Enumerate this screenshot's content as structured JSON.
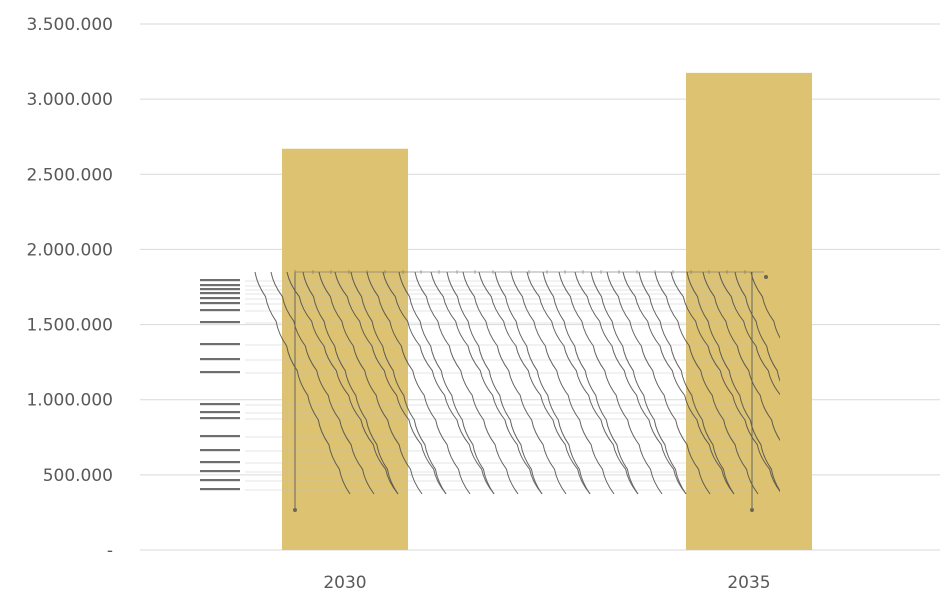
{
  "chart_data": {
    "type": "bar",
    "categories": [
      "2030",
      "2035"
    ],
    "values": [
      2670000,
      3175000
    ],
    "ylim": [
      0,
      3500000
    ],
    "yticks": [
      0,
      500000,
      1000000,
      1500000,
      2000000,
      2500000,
      3000000,
      3500000
    ],
    "ytick_labels": [
      "-",
      "500.000",
      "1.000.000",
      "1.500.000",
      "2.000.000",
      "2.500.000",
      "3.000.000",
      "3.500.000"
    ],
    "bar_color": "#dcc271",
    "grid": true,
    "legend": "none"
  },
  "overlay": {
    "description_free": true,
    "line_color": "#4a4a4a",
    "station_line_color": "#bfbfbf"
  }
}
